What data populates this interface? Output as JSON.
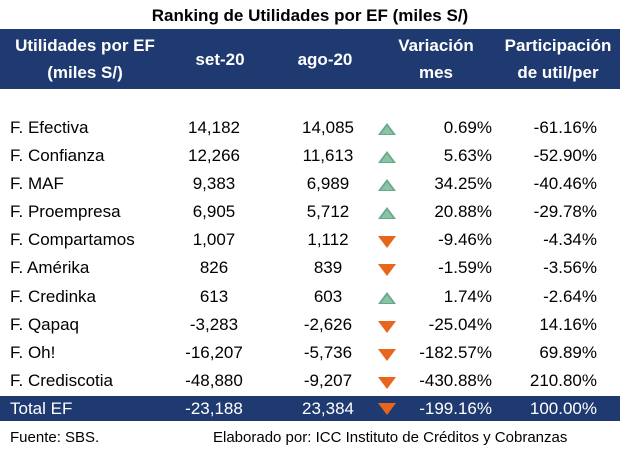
{
  "title": "Ranking de Utilidades por EF (miles S/)",
  "header": {
    "col1_line1": "Utilidades por EF",
    "col1_line2": "(miles S/)",
    "col2": "set-20",
    "col3": "ago-20",
    "col4_line1": "Variación",
    "col4_line2": "mes",
    "col5_line1": "Participación",
    "col5_line2": "de util/per"
  },
  "colors": {
    "header_bg": "#1f3a70",
    "up_indicator": "#8bc4a5",
    "down_indicator": "#e8651c"
  },
  "rows": [
    {
      "name": "F. Efectiva",
      "set": "14,182",
      "ago": "14,085",
      "trend": "up-icon",
      "var": "0.69%",
      "part": "-61.16%"
    },
    {
      "name": "F. Confianza",
      "set": "12,266",
      "ago": "11,613",
      "trend": "up-icon",
      "var": "5.63%",
      "part": "-52.90%"
    },
    {
      "name": "F. MAF",
      "set": "9,383",
      "ago": "6,989",
      "trend": "up-icon",
      "var": "34.25%",
      "part": "-40.46%"
    },
    {
      "name": "F. Proempresa",
      "set": "6,905",
      "ago": "5,712",
      "trend": "up-icon",
      "var": "20.88%",
      "part": "-29.78%"
    },
    {
      "name": "F. Compartamos",
      "set": "1,007",
      "ago": "1,112",
      "trend": "down-icon",
      "var": "-9.46%",
      "part": "-4.34%"
    },
    {
      "name": "F. Amérika",
      "set": "826",
      "ago": "839",
      "trend": "down-icon",
      "var": "-1.59%",
      "part": "-3.56%"
    },
    {
      "name": "F. Credinka",
      "set": "613",
      "ago": "603",
      "trend": "up-icon",
      "var": "1.74%",
      "part": "-2.64%"
    },
    {
      "name": "F. Qapaq",
      "set": "-3,283",
      "ago": "-2,626",
      "trend": "down-icon",
      "var": "-25.04%",
      "part": "14.16%"
    },
    {
      "name": "F. Oh!",
      "set": "-16,207",
      "ago": "-5,736",
      "trend": "down-icon",
      "var": "-182.57%",
      "part": "69.89%"
    },
    {
      "name": "F. Crediscotia",
      "set": "-48,880",
      "ago": "-9,207",
      "trend": "down-icon",
      "var": "-430.88%",
      "part": "210.80%"
    }
  ],
  "total": {
    "name": "Total EF",
    "set": "-23,188",
    "ago": "23,384",
    "trend": "down-icon",
    "var": "-199.16%",
    "part": "100.00%"
  },
  "footer": {
    "source": "Fuente: SBS.",
    "credit": "Elaborado por: ICC Instituto de Créditos y Cobranzas"
  }
}
